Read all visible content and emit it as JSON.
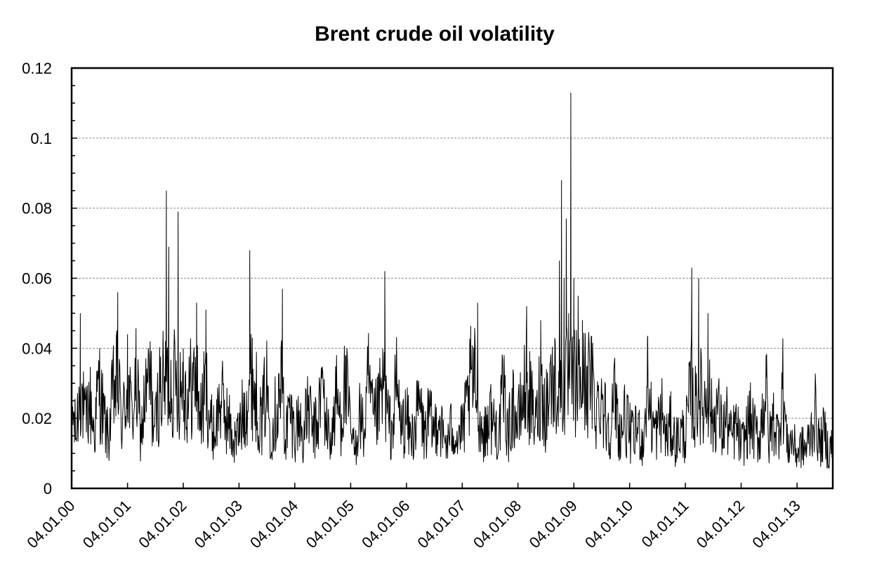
{
  "chart_data": {
    "type": "line",
    "title": "Brent crude oil volatility",
    "xlabel": "",
    "ylabel": "",
    "ylim": [
      0,
      0.12
    ],
    "yticks": [
      "0",
      "0.02",
      "0.04",
      "0.06",
      "0.08",
      "0.1",
      "0.12"
    ],
    "ytick_values": [
      0,
      0.02,
      0.04,
      0.06,
      0.08,
      0.1,
      0.12
    ],
    "y_minor_step": 0.005,
    "x_start": "04.01.00",
    "x_end": "26.08.13",
    "xticks": [
      "04.01.00",
      "04.01.01",
      "04.01.02",
      "04.01.03",
      "04.01.04",
      "04.01.05",
      "04.01.06",
      "04.01.07",
      "04.01.08",
      "04.01.09",
      "04.01.10",
      "04.01.11",
      "04.01.12",
      "04.01.13"
    ],
    "grid": {
      "horizontal": true,
      "vertical": false
    },
    "legend": "none",
    "series": [
      {
        "color": "#000000",
        "x": [
          "04.01.00",
          "01.02.00",
          "01.03.00",
          "01.04.00",
          "01.05.00",
          "01.06.00",
          "01.07.00",
          "01.08.00",
          "01.09.00",
          "01.10.00",
          "01.11.00",
          "01.12.00",
          "04.01.01",
          "01.02.01",
          "01.03.01",
          "01.04.01",
          "01.05.01",
          "01.06.01",
          "01.07.01",
          "01.08.01",
          "15.09.01",
          "01.10.01",
          "01.11.01",
          "01.12.01",
          "04.01.02",
          "01.02.02",
          "01.03.02",
          "01.04.02",
          "01.05.02",
          "01.06.02",
          "01.07.02",
          "01.08.02",
          "01.09.02",
          "01.10.02",
          "01.11.02",
          "01.12.02",
          "04.01.03",
          "01.02.03",
          "15.03.03",
          "01.04.03",
          "01.05.03",
          "01.06.03",
          "01.07.03",
          "01.08.03",
          "01.09.03",
          "15.10.03",
          "01.11.03",
          "01.12.03",
          "04.01.04",
          "01.02.04",
          "01.03.04",
          "01.04.04",
          "01.05.04",
          "01.06.04",
          "01.07.04",
          "01.08.04",
          "01.09.04",
          "01.10.04",
          "01.11.04",
          "01.12.04",
          "04.01.05",
          "01.02.05",
          "01.03.05",
          "01.04.05",
          "01.05.05",
          "01.06.05",
          "01.07.05",
          "15.08.05",
          "01.09.05",
          "01.10.05",
          "01.11.05",
          "01.12.05",
          "04.01.06",
          "01.02.06",
          "01.03.06",
          "01.04.06",
          "01.05.06",
          "01.06.06",
          "01.07.06",
          "01.08.06",
          "01.09.06",
          "01.10.06",
          "01.11.06",
          "01.12.06",
          "04.01.07",
          "01.02.07",
          "01.03.07",
          "15.04.07",
          "01.05.07",
          "01.06.07",
          "01.07.07",
          "01.08.07",
          "01.09.07",
          "01.10.07",
          "01.11.07",
          "01.12.07",
          "04.01.08",
          "01.02.08",
          "01.03.08",
          "15.04.08",
          "01.05.08",
          "01.06.08",
          "01.07.08",
          "01.08.08",
          "01.09.08",
          "01.10.08",
          "15.10.08",
          "01.11.08",
          "15.11.08",
          "01.12.08",
          "15.12.08",
          "04.01.09",
          "01.02.09",
          "01.03.09",
          "01.04.09",
          "01.05.09",
          "01.06.09",
          "01.07.09",
          "01.08.09",
          "01.09.09",
          "01.10.09",
          "01.11.09",
          "01.12.09",
          "04.01.10",
          "01.02.10",
          "01.03.10",
          "01.04.10",
          "01.05.10",
          "01.06.10",
          "01.07.10",
          "01.08.10",
          "01.09.10",
          "01.10.10",
          "01.11.10",
          "01.12.10",
          "04.01.11",
          "15.02.11",
          "01.03.11",
          "01.04.11",
          "01.05.11",
          "01.06.11",
          "01.07.11",
          "01.08.11",
          "01.09.11",
          "01.10.11",
          "01.11.11",
          "01.12.11",
          "04.01.12",
          "01.02.12",
          "01.03.12",
          "01.04.12",
          "01.05.12",
          "15.06.12",
          "01.07.12",
          "01.08.12",
          "01.09.12",
          "01.10.12",
          "01.11.12",
          "01.12.12",
          "04.01.13",
          "01.02.13",
          "01.03.13",
          "01.04.13",
          "01.05.13",
          "01.06.13",
          "01.07.13",
          "01.08.13",
          "26.08.13"
        ],
        "values": [
          0.024,
          0.015,
          0.05,
          0.018,
          0.025,
          0.016,
          0.036,
          0.02,
          0.014,
          0.027,
          0.056,
          0.018,
          0.044,
          0.02,
          0.033,
          0.015,
          0.026,
          0.042,
          0.016,
          0.028,
          0.085,
          0.069,
          0.03,
          0.079,
          0.04,
          0.025,
          0.03,
          0.053,
          0.02,
          0.051,
          0.018,
          0.016,
          0.026,
          0.022,
          0.018,
          0.013,
          0.016,
          0.022,
          0.068,
          0.043,
          0.025,
          0.018,
          0.03,
          0.016,
          0.022,
          0.057,
          0.014,
          0.022,
          0.016,
          0.02,
          0.014,
          0.024,
          0.016,
          0.018,
          0.03,
          0.017,
          0.014,
          0.026,
          0.02,
          0.038,
          0.016,
          0.01,
          0.022,
          0.015,
          0.034,
          0.018,
          0.022,
          0.062,
          0.02,
          0.016,
          0.038,
          0.017,
          0.02,
          0.014,
          0.018,
          0.024,
          0.015,
          0.02,
          0.016,
          0.022,
          0.014,
          0.013,
          0.018,
          0.015,
          0.016,
          0.022,
          0.035,
          0.053,
          0.018,
          0.015,
          0.022,
          0.018,
          0.016,
          0.028,
          0.015,
          0.024,
          0.018,
          0.025,
          0.052,
          0.02,
          0.018,
          0.048,
          0.022,
          0.032,
          0.04,
          0.065,
          0.088,
          0.06,
          0.077,
          0.05,
          0.113,
          0.06,
          0.055,
          0.048,
          0.035,
          0.03,
          0.022,
          0.028,
          0.02,
          0.018,
          0.026,
          0.015,
          0.02,
          0.016,
          0.014,
          0.018,
          0.012,
          0.043,
          0.018,
          0.016,
          0.022,
          0.014,
          0.018,
          0.013,
          0.016,
          0.015,
          0.063,
          0.02,
          0.06,
          0.022,
          0.05,
          0.018,
          0.024,
          0.016,
          0.02,
          0.014,
          0.018,
          0.012,
          0.015,
          0.02,
          0.016,
          0.014,
          0.038,
          0.012,
          0.02,
          0.015,
          0.03,
          0.012,
          0.014,
          0.01,
          0.012,
          0.011,
          0.015,
          0.022,
          0.012,
          0.016,
          0.01,
          0.014
        ]
      }
    ]
  }
}
